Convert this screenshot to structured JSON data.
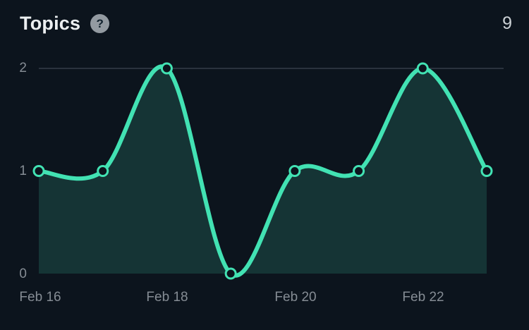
{
  "header": {
    "title": "Topics",
    "help_label": "?",
    "count": "9"
  },
  "axes": {
    "y_tick_labels": {
      "t2": "2",
      "t1": "1",
      "t0": "0"
    },
    "x_tick_labels": [
      "Feb 16",
      "Feb 18",
      "Feb 20",
      "Feb 22"
    ]
  },
  "chart_data": {
    "type": "line",
    "title": "Topics",
    "total": 9,
    "x": [
      "Feb 16",
      "Feb 17",
      "Feb 18",
      "Feb 19",
      "Feb 20",
      "Feb 21",
      "Feb 22",
      "Feb 23"
    ],
    "values": [
      1,
      1,
      2,
      0,
      1,
      1,
      2,
      1
    ],
    "x_tick_labels": [
      "Feb 16",
      "Feb 18",
      "Feb 20",
      "Feb 22"
    ],
    "y_ticks": [
      0,
      1,
      2
    ],
    "ylim": [
      0,
      2
    ],
    "smooth": true,
    "legend": "none",
    "grid": "top-gridline-only",
    "colors": {
      "line": "#42e2b3",
      "fill": "rgba(66,226,179,0.16)",
      "marker_fill": "#0c141d",
      "grid": "#2a323d",
      "background": "#0c141d",
      "tick_text": "#858c94",
      "title_text": "#eceff1"
    }
  }
}
